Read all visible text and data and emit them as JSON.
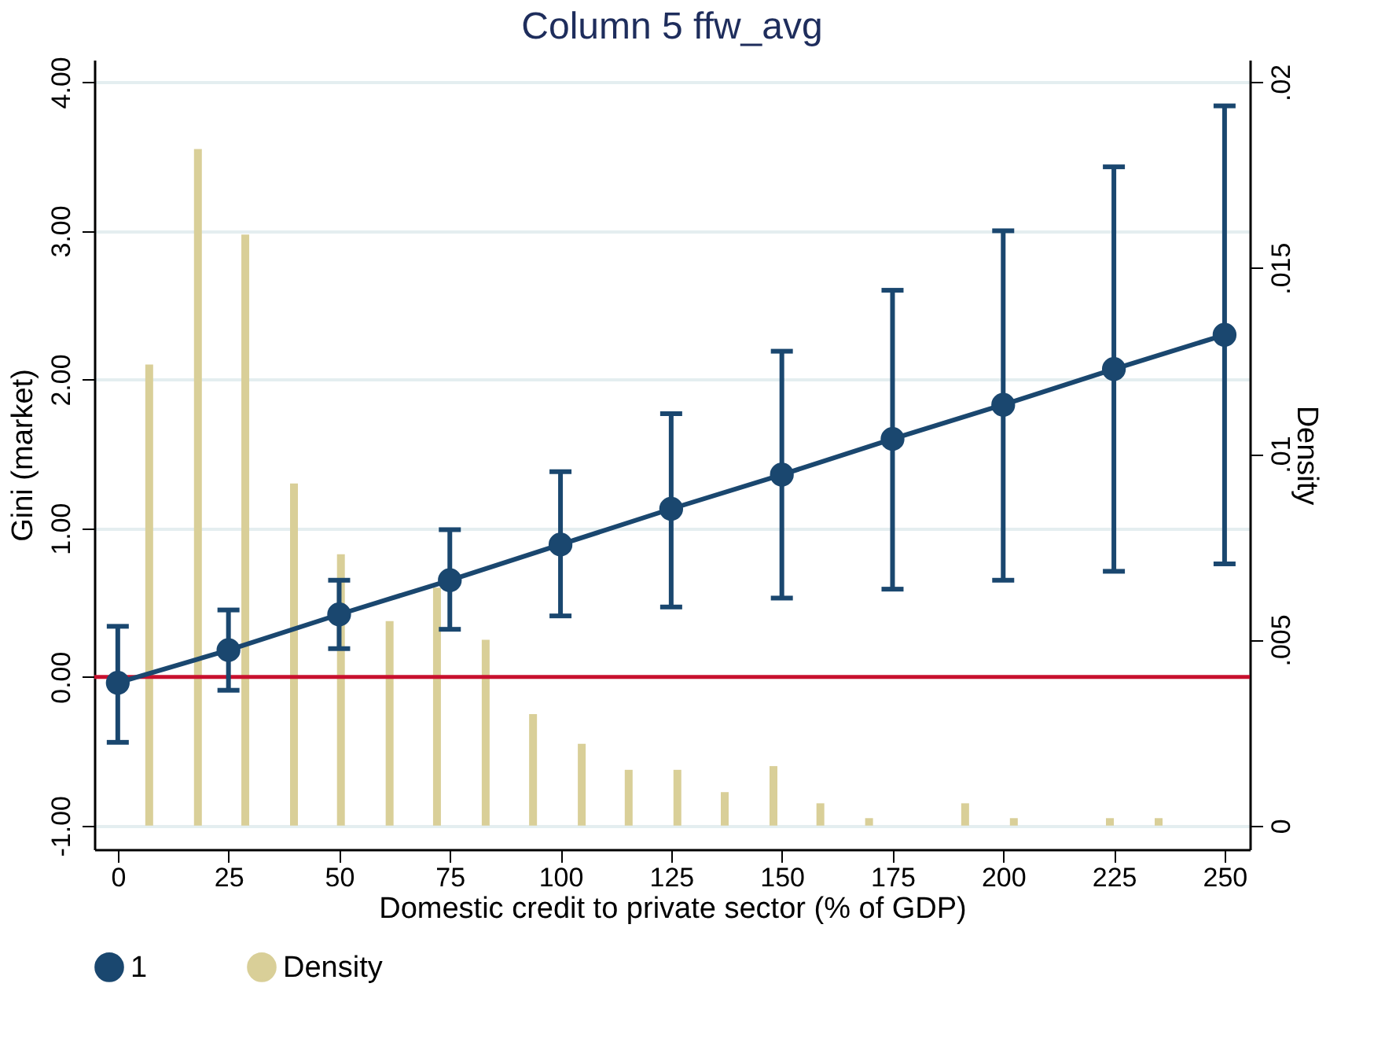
{
  "chart_data": {
    "type": "line",
    "title": "Column 5 ffw_avg",
    "xlabel": "Domestic credit to private sector (% of GDP)",
    "ylabel": "Gini (market)",
    "y2label": "Density",
    "xlim": [
      -5.3,
      255.7
    ],
    "xticks": [
      0,
      25,
      50,
      75,
      100,
      125,
      150,
      175,
      200,
      225,
      250
    ],
    "ylim": [
      -1.16,
      4.15
    ],
    "yticks": [
      {
        "value": -1,
        "label": "-1.00"
      },
      {
        "value": 0,
        "label": "0.00"
      },
      {
        "value": 1,
        "label": "1.00"
      },
      {
        "value": 2,
        "label": "2.00"
      },
      {
        "value": 3,
        "label": "3.00"
      },
      {
        "value": 4,
        "label": "4.00"
      }
    ],
    "y2lim": [
      -0.00064,
      0.0206
    ],
    "y2ticks": [
      {
        "value": 0,
        "label": "0"
      },
      {
        "value": 0.005,
        "label": ".005"
      },
      {
        "value": 0.01,
        "label": ".01"
      },
      {
        "value": 0.015,
        "label": ".015"
      },
      {
        "value": 0.02,
        "label": ".02"
      }
    ],
    "grid": "y",
    "legend": "bottom",
    "marker": "circle",
    "ref_lines": [
      {
        "axis": "y",
        "value": 0,
        "color": "#c8102e"
      }
    ],
    "series": [
      {
        "type": "bar",
        "name": "Density",
        "axis": "y2",
        "color": "#d9cf98",
        "x": [
          7.1,
          18.1,
          28.8,
          39.8,
          50.4,
          61.4,
          72.1,
          83.1,
          93.8,
          104.8,
          115.4,
          126.4,
          137.1,
          148.1,
          158.7,
          169.7,
          191.4,
          202.4,
          224.1,
          235.1
        ],
        "values": [
          0.0124,
          0.0182,
          0.0159,
          0.0092,
          0.0073,
          0.0055,
          0.0064,
          0.005,
          0.003,
          0.0022,
          0.0015,
          0.0015,
          0.0009,
          0.0016,
          0.0006,
          0.0002,
          0.0006,
          0.0002,
          0.0002,
          0.0002
        ]
      },
      {
        "name": "1",
        "color": "#1a476f",
        "x": [
          0,
          25,
          50,
          75,
          100,
          125,
          150,
          175,
          200,
          225,
          250
        ],
        "values": [
          -0.04,
          0.18,
          0.42,
          0.65,
          0.89,
          1.13,
          1.36,
          1.6,
          1.83,
          2.07,
          2.3
        ],
        "errors": [
          [
            -0.44,
            0.34
          ],
          [
            -0.09,
            0.45
          ],
          [
            0.19,
            0.65
          ],
          [
            0.32,
            0.99
          ],
          [
            0.41,
            1.38
          ],
          [
            0.47,
            1.77
          ],
          [
            0.53,
            2.19
          ],
          [
            0.59,
            2.6
          ],
          [
            0.65,
            3.0
          ],
          [
            0.71,
            3.43
          ],
          [
            0.76,
            3.84
          ]
        ]
      }
    ]
  }
}
